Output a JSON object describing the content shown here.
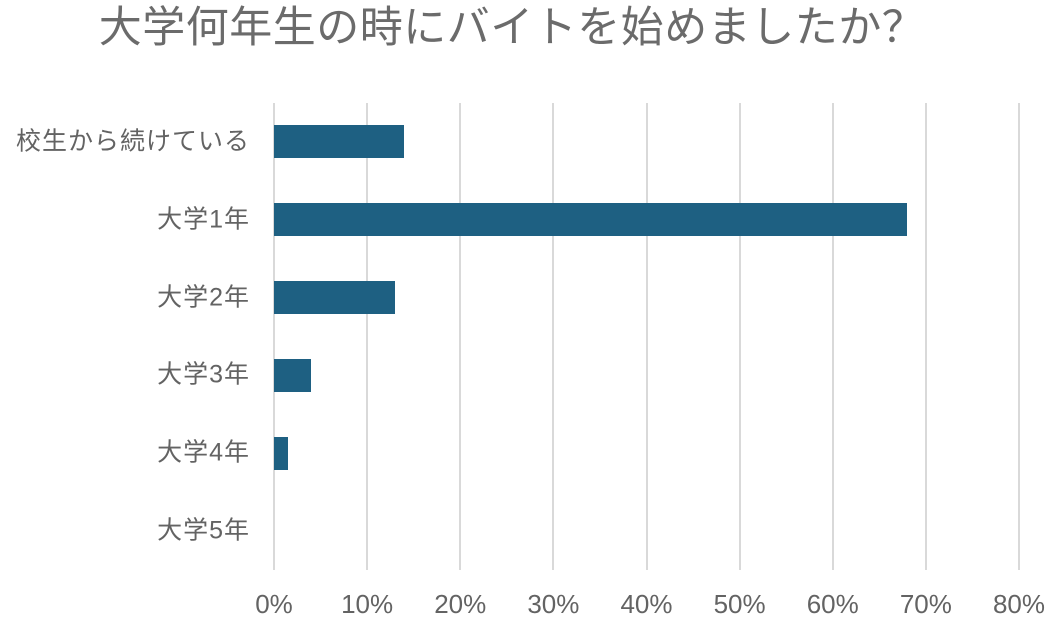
{
  "chart_data": {
    "type": "bar",
    "orientation": "horizontal",
    "title": "大学何年生の時にバイトを始めましたか？",
    "categories": [
      "校生から続けている",
      "大学1年",
      "大学2年",
      "大学3年",
      "大学4年",
      "大学5年"
    ],
    "values": [
      14,
      68,
      13,
      4,
      1.5,
      0
    ],
    "unit": "%",
    "xlabel": "",
    "ylabel": "",
    "x_ticks": [
      "0%",
      "10%",
      "20%",
      "30%",
      "40%",
      "50%",
      "60%",
      "70%",
      "80%"
    ],
    "xlim": [
      0,
      80
    ],
    "grid": "vertical-gridlines-only",
    "legend": "none",
    "colors": {
      "bar": "#1e6082",
      "gridline": "#d9d9d9",
      "title_text": "#6b6b6b",
      "axis_text": "#636363",
      "background": "#ffffff"
    }
  }
}
